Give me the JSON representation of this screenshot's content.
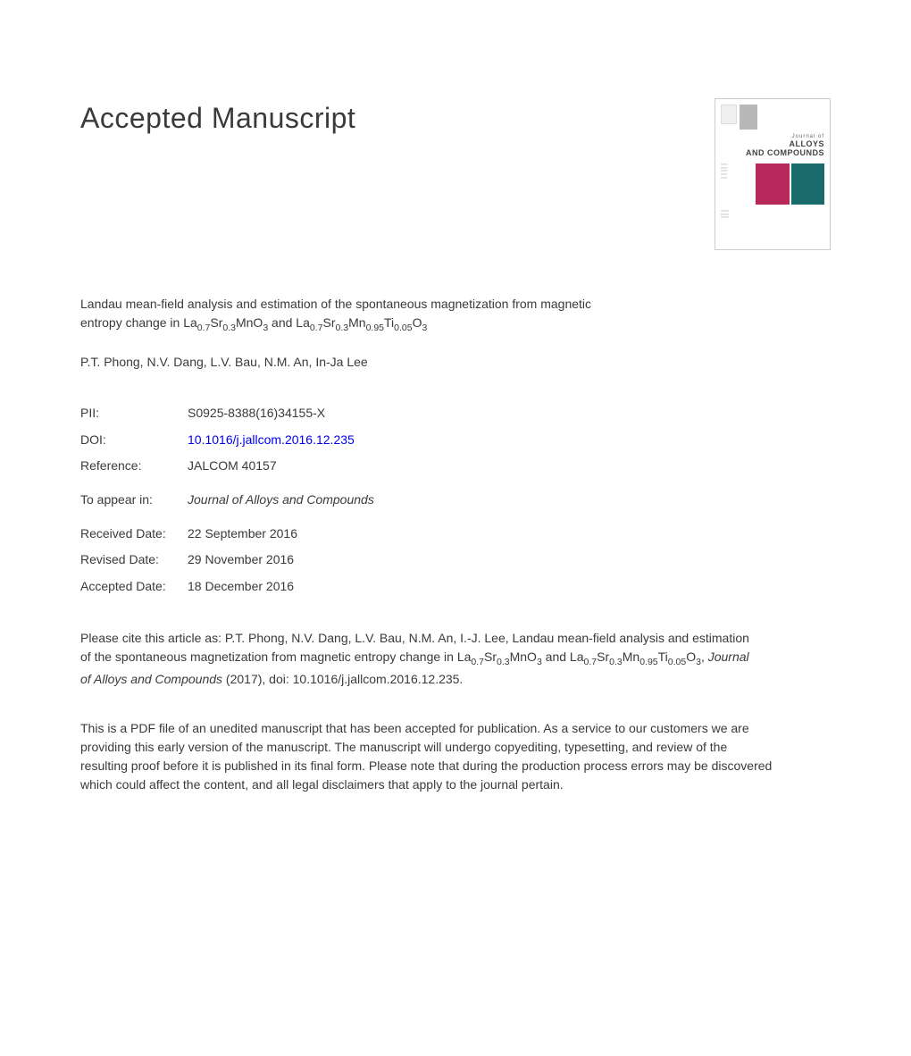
{
  "heading": "Accepted Manuscript",
  "cover": {
    "journal_of": "Journal of",
    "name_line1": "ALLOYS",
    "name_line2": "AND COMPOUNDS"
  },
  "article": {
    "title_pre": "Landau mean-field analysis and estimation of the spontaneous magnetization from magnetic entropy change in La",
    "sub1": "0.7",
    "mid1": "Sr",
    "sub2": "0.3",
    "mid2": "MnO",
    "sub3": "3",
    "mid3": " and La",
    "sub4": "0.7",
    "mid4": "Sr",
    "sub5": "0.3",
    "mid5": "Mn",
    "sub6": "0.95",
    "mid6": "Ti",
    "sub7": "0.05",
    "mid7": "O",
    "sub8": "3"
  },
  "authors": "P.T. Phong, N.V. Dang, L.V. Bau, N.M. An, In-Ja Lee",
  "meta": {
    "pii_label": "PII:",
    "pii_value": "S0925-8388(16)34155-X",
    "doi_label": "DOI:",
    "doi_value": "10.1016/j.jallcom.2016.12.235",
    "ref_label": "Reference:",
    "ref_value": "JALCOM 40157",
    "appear_label": "To appear in:",
    "appear_value": "Journal of Alloys and Compounds",
    "received_label": "Received Date:",
    "received_value": "22 September 2016",
    "revised_label": "Revised Date:",
    "revised_value": "29 November 2016",
    "accepted_label": "Accepted Date:",
    "accepted_value": "18 December 2016"
  },
  "citation": {
    "pre": "Please cite this article as: P.T. Phong, N.V. Dang, L.V. Bau, N.M. An, I.-J. Lee, Landau mean-field analysis and estimation of the spontaneous magnetization from magnetic entropy change in La",
    "sub1": "0.7",
    "m1": "Sr",
    "sub2": "0.3",
    "m2": "MnO",
    "sub3": "3",
    "m3": " and La",
    "sub4": "0.7",
    "m4": "Sr",
    "sub5": "0.3",
    "m5": "Mn",
    "sub6": "0.95",
    "m6": "Ti",
    "sub7": "0.05",
    "m7": "O",
    "sub8": "3",
    "m8": ", ",
    "journal": "Journal of Alloys and Compounds",
    "post": " (2017), doi: 10.1016/j.jallcom.2016.12.235."
  },
  "disclaimer": "This is a PDF file of an unedited manuscript that has been accepted for publication. As a service to our customers we are providing this early version of the manuscript. The manuscript will undergo copyediting, typesetting, and review of the resulting proof before it is published in its final form. Please note that during the production process errors may be discovered which could affect the content, and all legal disclaimers that apply to the journal pertain."
}
